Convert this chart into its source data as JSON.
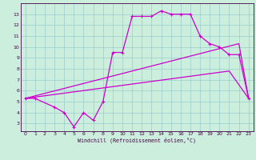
{
  "xlabel": "Windchill (Refroidissement éolien,°C)",
  "bg_color": "#cceedd",
  "grid_color": "#99cccc",
  "line_color": "#cc00cc",
  "x_ticks": [
    0,
    1,
    2,
    3,
    4,
    5,
    6,
    7,
    8,
    9,
    10,
    11,
    12,
    13,
    14,
    15,
    16,
    17,
    18,
    19,
    20,
    21,
    22,
    23
  ],
  "y_ticks": [
    3,
    4,
    5,
    6,
    7,
    8,
    9,
    10,
    11,
    12,
    13
  ],
  "xlim": [
    -0.5,
    23.5
  ],
  "ylim": [
    2.3,
    14.0
  ],
  "line1_x": [
    0,
    1,
    3,
    4,
    5,
    6,
    7,
    8,
    9,
    10,
    11,
    12,
    13,
    14,
    15,
    16,
    17,
    18,
    19,
    20,
    21,
    22,
    23
  ],
  "line1_y": [
    5.3,
    5.3,
    4.5,
    4.0,
    2.7,
    4.0,
    3.3,
    5.0,
    9.5,
    9.5,
    12.8,
    12.8,
    12.8,
    13.3,
    13.0,
    13.0,
    13.0,
    11.0,
    10.3,
    10.0,
    9.3,
    9.3,
    5.3
  ],
  "line2_x": [
    0,
    22,
    23
  ],
  "line2_y": [
    5.3,
    10.3,
    5.3
  ],
  "line3_x": [
    0,
    21,
    23
  ],
  "line3_y": [
    5.3,
    7.8,
    5.3
  ]
}
